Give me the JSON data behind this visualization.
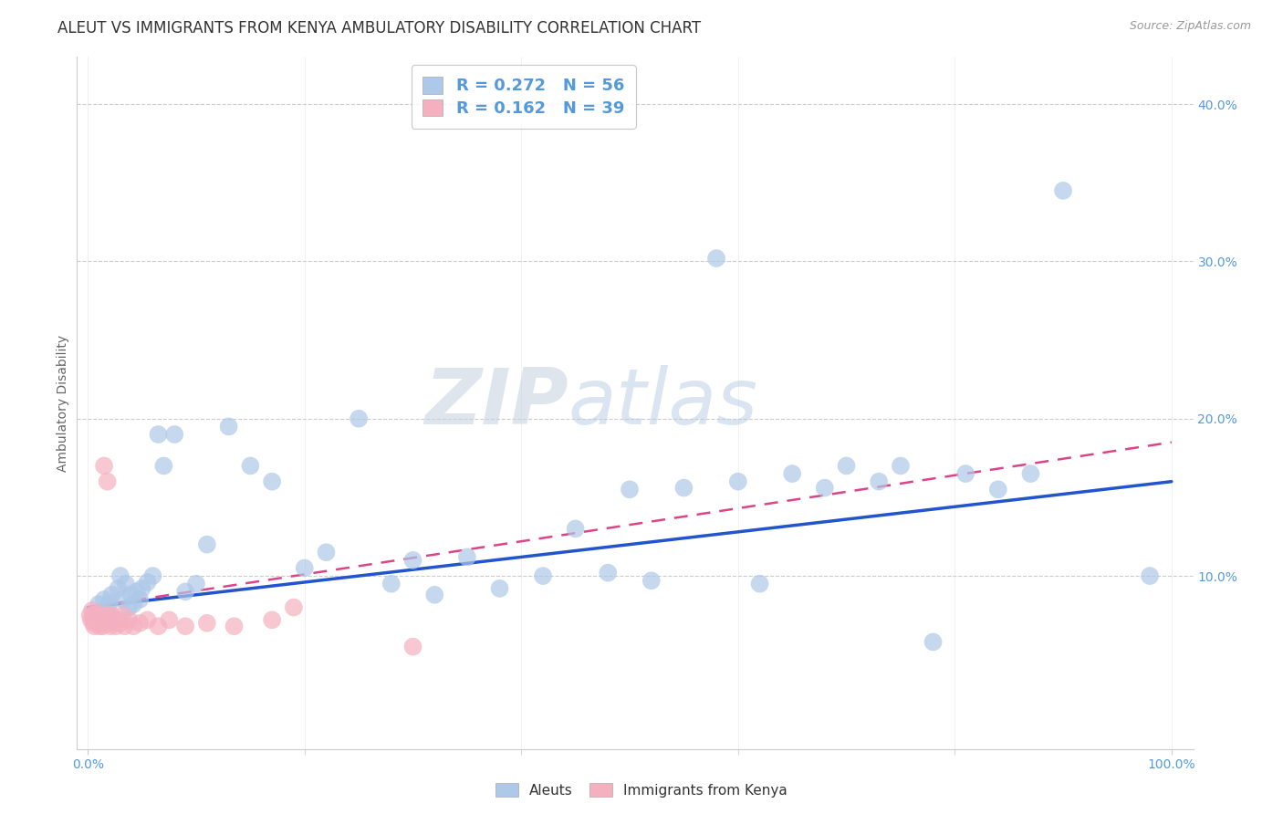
{
  "title": "ALEUT VS IMMIGRANTS FROM KENYA AMBULATORY DISABILITY CORRELATION CHART",
  "source": "Source: ZipAtlas.com",
  "ylabel": "Ambulatory Disability",
  "legend_aleuts": "Aleuts",
  "legend_kenya": "Immigrants from Kenya",
  "aleut_R": "0.272",
  "aleut_N": "56",
  "kenya_R": "0.162",
  "kenya_N": "39",
  "aleut_color": "#adc8e8",
  "aleut_line_color": "#2255cc",
  "kenya_color": "#f5b0c0",
  "kenya_line_color": "#dd4488",
  "background_color": "#ffffff",
  "grid_color": "#cccccc",
  "title_color": "#333333",
  "axis_tick_color": "#5599dd",
  "yaxis_values": [
    0.0,
    0.1,
    0.2,
    0.3,
    0.4
  ],
  "xaxis_values": [
    0.0,
    0.2,
    0.4,
    0.6,
    0.8,
    1.0
  ],
  "xlim": [
    -0.01,
    1.02
  ],
  "ylim": [
    -0.01,
    0.43
  ],
  "aleut_line": [
    0.08,
    0.16
  ],
  "kenya_line": [
    0.08,
    0.185
  ],
  "aleut_x": [
    0.005,
    0.01,
    0.015,
    0.018,
    0.02,
    0.022,
    0.025,
    0.028,
    0.03,
    0.032,
    0.035,
    0.038,
    0.04,
    0.042,
    0.045,
    0.048,
    0.05,
    0.055,
    0.06,
    0.065,
    0.07,
    0.08,
    0.09,
    0.1,
    0.11,
    0.13,
    0.15,
    0.17,
    0.2,
    0.22,
    0.25,
    0.28,
    0.3,
    0.32,
    0.35,
    0.38,
    0.42,
    0.45,
    0.48,
    0.5,
    0.52,
    0.55,
    0.58,
    0.6,
    0.62,
    0.65,
    0.68,
    0.7,
    0.73,
    0.75,
    0.78,
    0.81,
    0.84,
    0.87,
    0.9,
    0.98
  ],
  "aleut_y": [
    0.075,
    0.082,
    0.085,
    0.08,
    0.083,
    0.088,
    0.072,
    0.092,
    0.1,
    0.085,
    0.095,
    0.08,
    0.088,
    0.082,
    0.09,
    0.085,
    0.092,
    0.096,
    0.1,
    0.19,
    0.17,
    0.19,
    0.09,
    0.095,
    0.12,
    0.195,
    0.17,
    0.16,
    0.105,
    0.115,
    0.2,
    0.095,
    0.11,
    0.088,
    0.112,
    0.092,
    0.1,
    0.13,
    0.102,
    0.155,
    0.097,
    0.156,
    0.302,
    0.16,
    0.095,
    0.165,
    0.156,
    0.17,
    0.16,
    0.17,
    0.058,
    0.165,
    0.155,
    0.165,
    0.345,
    0.1
  ],
  "kenya_x": [
    0.002,
    0.003,
    0.004,
    0.005,
    0.006,
    0.007,
    0.008,
    0.009,
    0.01,
    0.011,
    0.012,
    0.013,
    0.014,
    0.015,
    0.016,
    0.017,
    0.018,
    0.019,
    0.02,
    0.021,
    0.022,
    0.024,
    0.026,
    0.028,
    0.03,
    0.032,
    0.034,
    0.038,
    0.042,
    0.048,
    0.055,
    0.065,
    0.075,
    0.09,
    0.11,
    0.135,
    0.17,
    0.19,
    0.3
  ],
  "kenya_y": [
    0.075,
    0.072,
    0.078,
    0.07,
    0.068,
    0.074,
    0.072,
    0.076,
    0.07,
    0.068,
    0.072,
    0.07,
    0.068,
    0.17,
    0.072,
    0.075,
    0.16,
    0.07,
    0.072,
    0.068,
    0.075,
    0.07,
    0.068,
    0.072,
    0.07,
    0.075,
    0.068,
    0.072,
    0.068,
    0.07,
    0.072,
    0.068,
    0.072,
    0.068,
    0.07,
    0.068,
    0.072,
    0.08,
    0.055
  ]
}
